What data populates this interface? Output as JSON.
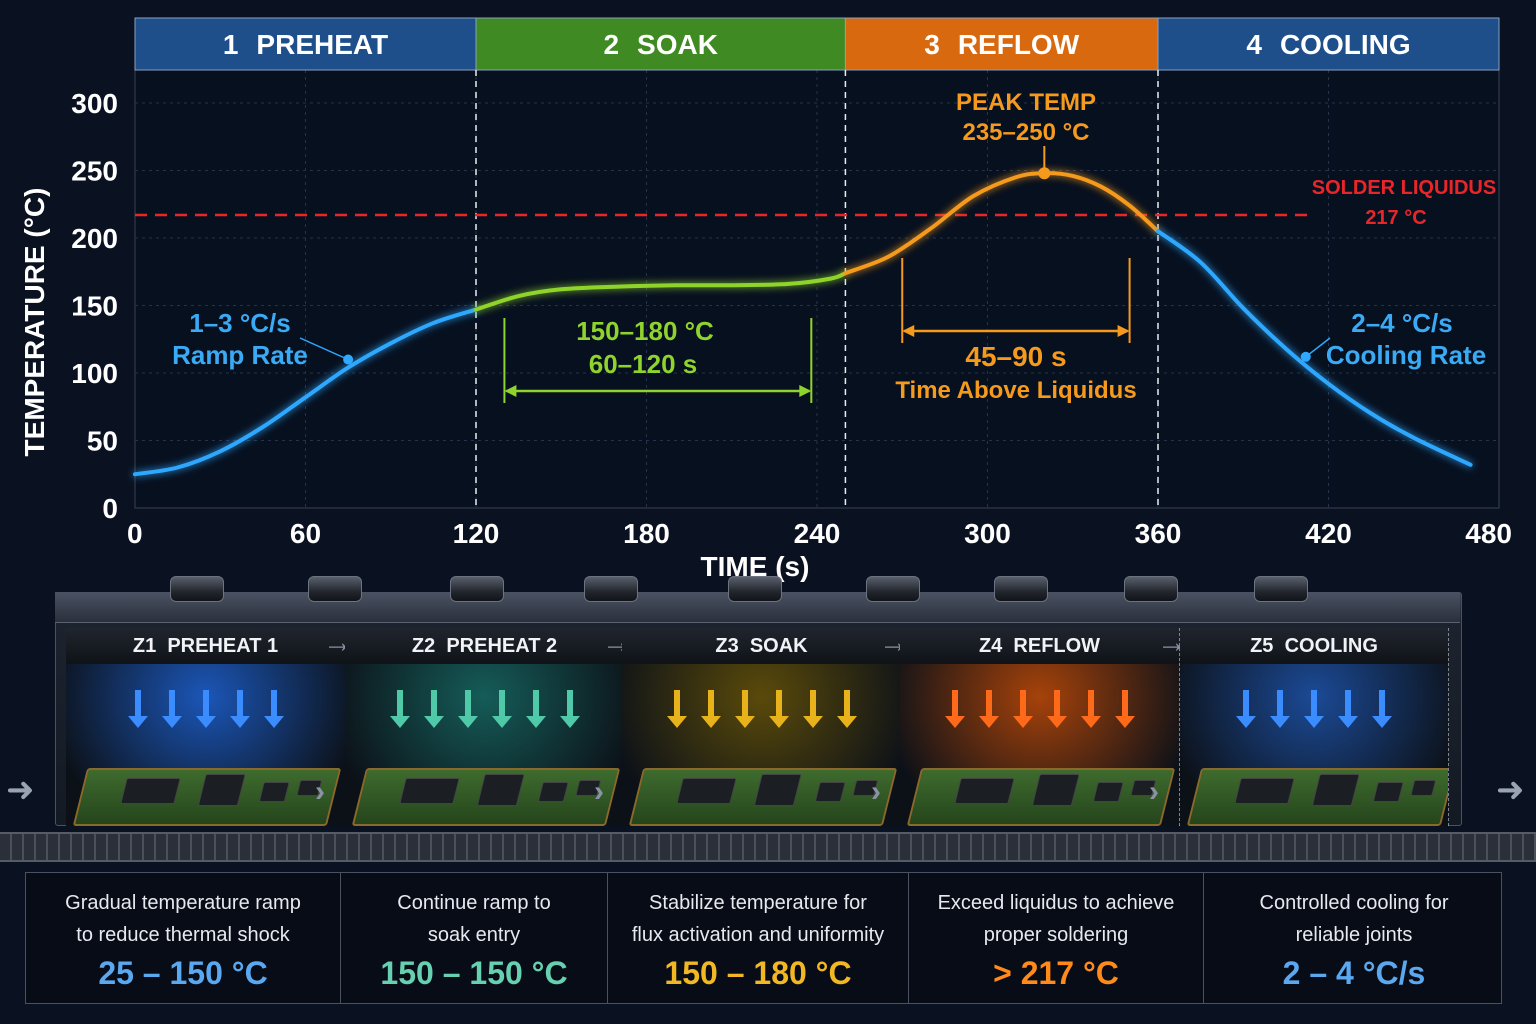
{
  "chart_data": {
    "type": "line",
    "xlabel": "TIME (s)",
    "ylabel": "TEMPERATURE (°C)",
    "xlim": [
      0,
      480
    ],
    "ylim": [
      0,
      300
    ],
    "x_ticks": [
      0,
      60,
      120,
      180,
      240,
      300,
      360,
      420,
      480
    ],
    "y_ticks": [
      0,
      50,
      100,
      150,
      200,
      250,
      300
    ],
    "grid": true,
    "phases": [
      {
        "num": "1",
        "name": "PREHEAT",
        "x_start": 0,
        "x_end": 120,
        "color": "#1e4f8a"
      },
      {
        "num": "2",
        "name": "SOAK",
        "x_start": 120,
        "x_end": 250,
        "color": "#3f8a22"
      },
      {
        "num": "3",
        "name": "REFLOW",
        "x_start": 250,
        "x_end": 360,
        "color": "#d9690e"
      },
      {
        "num": "4",
        "name": "COOLING",
        "x_start": 360,
        "x_end": 480,
        "color": "#1e4f8a"
      }
    ],
    "series": [
      {
        "segment": "preheat",
        "color": "#2fa8ff",
        "x": [
          0,
          15,
          30,
          45,
          60,
          75,
          90,
          105,
          120
        ],
        "y": [
          25,
          30,
          42,
          60,
          82,
          104,
          122,
          137,
          147
        ]
      },
      {
        "segment": "soak",
        "color": "#8fd42c",
        "x": [
          120,
          135,
          150,
          170,
          190,
          210,
          230,
          245,
          250
        ],
        "y": [
          147,
          157,
          162,
          164,
          165,
          165,
          166,
          170,
          174
        ]
      },
      {
        "segment": "reflow",
        "color": "#f59a1c",
        "x": [
          250,
          265,
          280,
          295,
          310,
          320,
          330,
          340,
          350,
          360
        ],
        "y": [
          174,
          186,
          207,
          231,
          245,
          248,
          246,
          238,
          224,
          205
        ]
      },
      {
        "segment": "cooling",
        "color": "#2fa8ff",
        "x": [
          360,
          375,
          390,
          405,
          420,
          435,
          450,
          470
        ],
        "y": [
          205,
          182,
          148,
          118,
          92,
          70,
          52,
          32
        ]
      }
    ],
    "liquidus": {
      "y": 217,
      "label_1": "SOLDER LIQUIDUS",
      "label_2": "217 °C",
      "color": "#e8262a"
    },
    "annotations": {
      "ramp": {
        "line1": "1–3 °C/s",
        "line2": "Ramp Rate",
        "x": 75,
        "y": 110
      },
      "soak": {
        "line1": "150–180 °C",
        "line2": "60–120 s",
        "x_start": 130,
        "x_end": 238,
        "y": 88
      },
      "peak": {
        "line1": "PEAK TEMP",
        "line2": "235–250 °C",
        "x": 320,
        "y": 248
      },
      "tal": {
        "line1": "45–90 s",
        "line2": "Time Above Liquidus",
        "x_start": 270,
        "x_end": 350,
        "y": 130
      },
      "cool": {
        "line1": "2–4 °C/s",
        "line2": "Cooling Rate",
        "x": 412,
        "y": 112
      }
    }
  },
  "oven": {
    "zones": [
      {
        "code": "Z1",
        "name": "PREHEAT 1",
        "glow": "#1b56b8",
        "arrow": "#3a8cff"
      },
      {
        "code": "Z2",
        "name": "PREHEAT 2",
        "glow": "#155c58",
        "arrow": "#4fc9a8"
      },
      {
        "code": "Z3",
        "name": "SOAK",
        "glow": "#5a4a0a",
        "arrow": "#e8b21a"
      },
      {
        "code": "Z4",
        "name": "REFLOW",
        "glow": "#a6420a",
        "arrow": "#ff6a1a"
      },
      {
        "code": "Z5",
        "name": "COOLING",
        "glow": "#1b4a96",
        "arrow": "#3a8cff"
      }
    ]
  },
  "cards": [
    {
      "line1": "Gradual temperature ramp",
      "line2": "to reduce thermal shock",
      "range": "25 – 150 °C",
      "color": "#5aa8f0"
    },
    {
      "line1": "Continue ramp to",
      "line2": "soak entry",
      "range": "150 – 150 °C",
      "color": "#66d0b0"
    },
    {
      "line1": "Stabilize temperature for",
      "line2": "flux activation and uniformity",
      "range": "150 – 180 °C",
      "color": "#f2b824"
    },
    {
      "line1": "Exceed liquidus to achieve",
      "line2": "proper soldering",
      "range": "> 217  °C",
      "color": "#ff8a1a"
    },
    {
      "line1": "Controlled cooling for",
      "line2": "reliable joints",
      "range": "2 – 4  °C/s",
      "color": "#5aa8f0"
    }
  ]
}
